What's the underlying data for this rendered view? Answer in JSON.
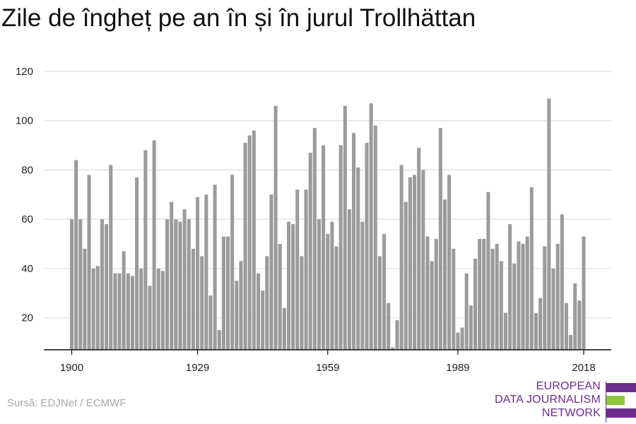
{
  "title": "Zile de îngheț pe an în și în jurul Trollhättan",
  "source": "Sursă: EDJNet / ECMWF",
  "logo": {
    "lines": [
      "EUROPEAN",
      "DATA JOURNALISM",
      "NETWORK"
    ],
    "colors": {
      "purple": "#6b2d8f",
      "green": "#8cc63f"
    }
  },
  "chart_data": {
    "type": "bar",
    "title": "Zile de îngheț pe an în și în jurul Trollhättan",
    "xlabel": "",
    "ylabel": "",
    "bar_color": "#9b9b9b",
    "grid": true,
    "ylim": [
      7,
      120
    ],
    "yticks": [
      20,
      40,
      60,
      80,
      100,
      120
    ],
    "xticks": [
      1900,
      1929,
      1959,
      1989,
      2018
    ],
    "x": [
      1900,
      1901,
      1902,
      1903,
      1904,
      1905,
      1906,
      1907,
      1908,
      1909,
      1910,
      1911,
      1912,
      1913,
      1914,
      1915,
      1916,
      1917,
      1918,
      1919,
      1920,
      1921,
      1922,
      1923,
      1924,
      1925,
      1926,
      1927,
      1928,
      1929,
      1930,
      1931,
      1932,
      1933,
      1934,
      1935,
      1936,
      1937,
      1938,
      1939,
      1940,
      1941,
      1942,
      1943,
      1944,
      1945,
      1946,
      1947,
      1948,
      1949,
      1950,
      1951,
      1952,
      1953,
      1954,
      1955,
      1956,
      1957,
      1958,
      1959,
      1960,
      1961,
      1962,
      1963,
      1964,
      1965,
      1966,
      1967,
      1968,
      1969,
      1970,
      1971,
      1972,
      1973,
      1974,
      1975,
      1976,
      1977,
      1978,
      1979,
      1980,
      1981,
      1982,
      1983,
      1984,
      1985,
      1986,
      1987,
      1988,
      1989,
      1990,
      1991,
      1992,
      1993,
      1994,
      1995,
      1996,
      1997,
      1998,
      1999,
      2000,
      2001,
      2002,
      2003,
      2004,
      2005,
      2006,
      2007,
      2008,
      2009,
      2010,
      2011,
      2012,
      2013,
      2014,
      2015,
      2016,
      2017,
      2018
    ],
    "values": [
      60,
      84,
      60,
      48,
      78,
      40,
      41,
      60,
      58,
      82,
      38,
      38,
      47,
      38,
      37,
      77,
      40,
      88,
      33,
      92,
      40,
      39,
      60,
      67,
      60,
      59,
      64,
      60,
      48,
      69,
      45,
      70,
      29,
      74,
      15,
      53,
      53,
      78,
      35,
      43,
      91,
      94,
      96,
      38,
      31,
      45,
      70,
      106,
      50,
      24,
      59,
      58,
      72,
      45,
      72,
      87,
      97,
      60,
      90,
      54,
      59,
      49,
      90,
      106,
      64,
      95,
      81,
      59,
      91,
      107,
      98,
      45,
      54,
      26,
      8,
      19,
      82,
      67,
      77,
      78,
      89,
      80,
      53,
      43,
      52,
      97,
      68,
      78,
      48,
      14,
      16,
      38,
      25,
      44,
      52,
      52,
      71,
      48,
      50,
      43,
      22,
      58,
      42,
      51,
      50,
      53,
      73,
      22,
      28,
      49,
      109,
      40,
      50,
      62,
      26,
      13,
      34,
      27,
      53
    ]
  }
}
